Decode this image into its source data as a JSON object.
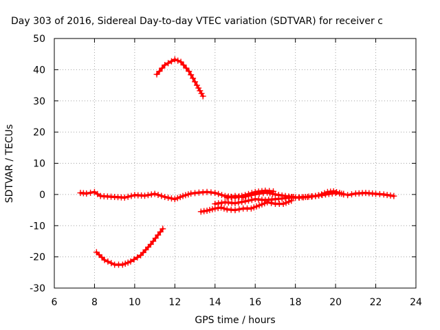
{
  "chart_data": {
    "type": "scatter",
    "title": "Day 303 of 2016, Sidereal Day-to-day VTEC variation (SDTVAR) for receiver c",
    "xlabel": "GPS time / hours",
    "ylabel": "SDTVAR / TECUs",
    "xlim": [
      6,
      24
    ],
    "ylim": [
      -30,
      50
    ],
    "xticks": [
      "6",
      "8",
      "10",
      "12",
      "14",
      "16",
      "18",
      "20",
      "22",
      "24"
    ],
    "yticks": [
      "50",
      "40",
      "30",
      "20",
      "10",
      "0",
      "-10",
      "-20",
      "-30"
    ],
    "grid": true,
    "marker": "plus",
    "series_color": "#ff0000",
    "series": [
      {
        "x": [
          11.1,
          11.5,
          12.0,
          12.3,
          12.7,
          13.1,
          13.4
        ],
        "y": [
          38.5,
          41.5,
          43.3,
          42.5,
          39.5,
          35.0,
          31.5
        ]
      },
      {
        "x": [
          8.1,
          8.5,
          9.0,
          9.4,
          9.8,
          10.3,
          10.8,
          11.4
        ],
        "y": [
          -18.5,
          -21.0,
          -22.5,
          -22.5,
          -21.5,
          -19.5,
          -16.0,
          -11.0
        ]
      },
      {
        "x": [
          7.3,
          7.6,
          8.0,
          8.3,
          9.0,
          9.5,
          10.0,
          10.5,
          11.0,
          11.5,
          12.0,
          12.4,
          12.8,
          13.2,
          13.6,
          14.0,
          14.5,
          15.0,
          15.5,
          16.0,
          16.5,
          16.9
        ],
        "y": [
          0.5,
          0.3,
          0.8,
          -0.5,
          -0.8,
          -1.0,
          -0.2,
          -0.4,
          0.2,
          -0.8,
          -1.5,
          -0.5,
          0.3,
          0.6,
          0.8,
          0.5,
          -0.5,
          -1.0,
          -0.2,
          0.8,
          1.2,
          1.0
        ]
      },
      {
        "x": [
          13.3,
          13.6,
          14.0,
          14.3,
          14.6,
          15.0,
          15.4,
          15.8,
          16.2,
          16.6,
          17.0,
          17.4,
          17.8
        ],
        "y": [
          -5.5,
          -5.2,
          -4.5,
          -4.2,
          -4.8,
          -5.0,
          -4.5,
          -4.5,
          -3.5,
          -2.5,
          -3.0,
          -3.0,
          -2.0
        ]
      },
      {
        "x": [
          14.0,
          14.5,
          15.0,
          15.5,
          16.0,
          16.5,
          17.0,
          17.5,
          17.9
        ],
        "y": [
          -3.0,
          -2.5,
          -2.8,
          -2.2,
          -1.5,
          -1.8,
          -1.5,
          -1.2,
          -0.8
        ]
      },
      {
        "x": [
          14.6,
          15.0,
          15.4,
          15.8,
          16.2,
          16.6,
          17.0,
          17.5,
          18.0,
          18.5,
          19.0,
          19.5,
          20.0,
          20.4
        ],
        "y": [
          -1.0,
          -0.5,
          -0.8,
          -0.2,
          0.3,
          0.6,
          0.0,
          -0.5,
          -1.0,
          -0.8,
          -0.5,
          0.0,
          0.5,
          0.2
        ]
      },
      {
        "x": [
          17.8,
          18.2,
          18.6,
          19.0,
          19.3,
          19.6,
          19.9,
          20.2,
          20.4
        ],
        "y": [
          -0.8,
          -1.0,
          -0.8,
          -0.5,
          0.0,
          0.8,
          1.0,
          0.5,
          0.0
        ]
      },
      {
        "x": [
          20.6,
          21.0,
          21.5,
          22.0,
          22.4,
          22.9
        ],
        "y": [
          -0.2,
          0.3,
          0.5,
          0.2,
          0.0,
          -0.5
        ]
      }
    ]
  }
}
